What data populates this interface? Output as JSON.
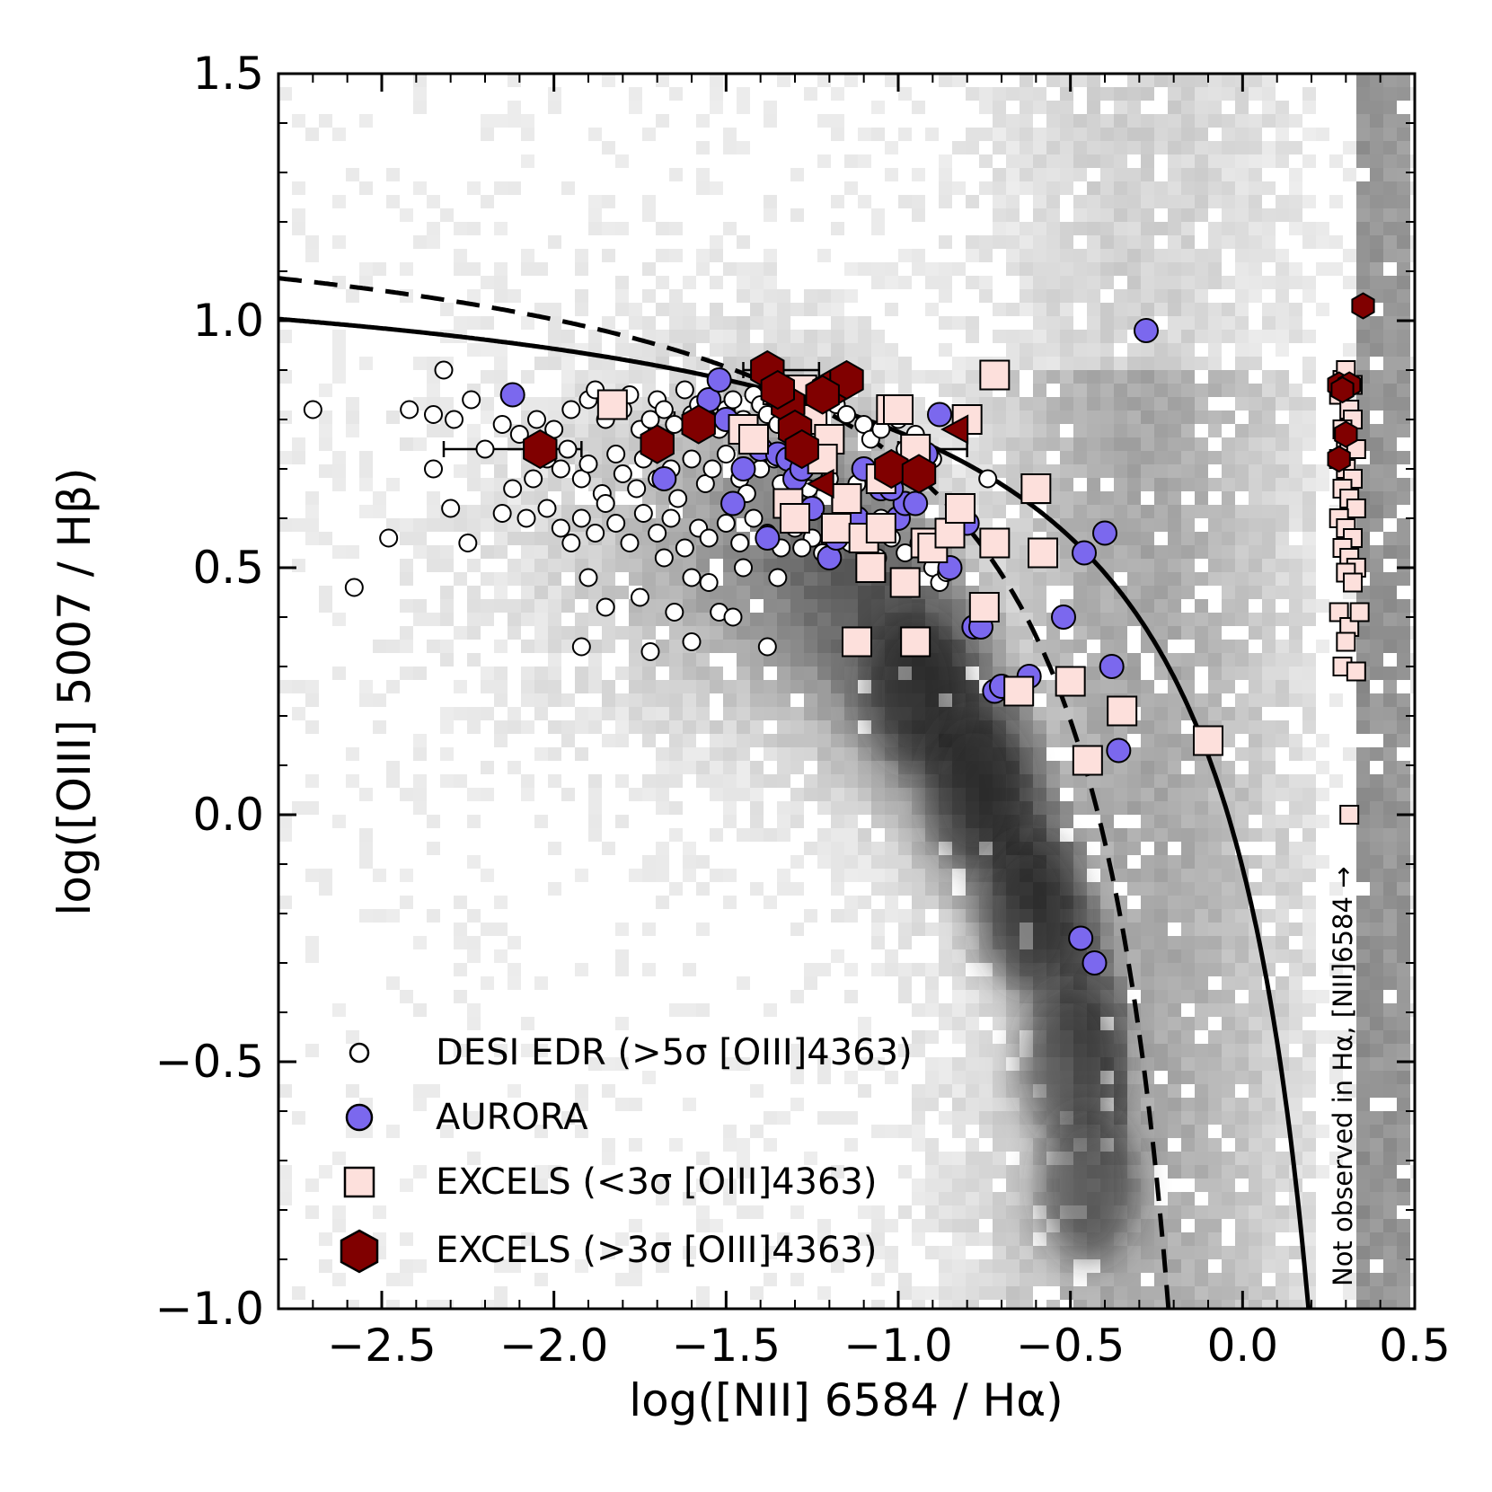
{
  "chart_data": {
    "type": "scatter",
    "xlabel": "log([NII] 6584 / Hα)",
    "ylabel": "log([OIII] 5007 / Hβ)",
    "xlim": [
      -2.8,
      0.5
    ],
    "ylim": [
      -1.0,
      1.5
    ],
    "x_ticks": [
      -2.5,
      -2.0,
      -1.5,
      -1.0,
      -0.5,
      0.0,
      0.5
    ],
    "x_tick_labels": [
      "−2.5",
      "−2.0",
      "−1.5",
      "−1.0",
      "−0.5",
      "0.0",
      "0.5"
    ],
    "y_ticks": [
      -1.0,
      -0.5,
      0.0,
      0.5,
      1.0,
      1.5
    ],
    "y_tick_labels": [
      "−1.0",
      "−0.5",
      "0.0",
      "0.5",
      "1.0",
      "1.5"
    ],
    "annotation": "Not observed in Hα, [NII]6584 →",
    "background": "2D histogram of a large galaxy sample in grayscale (density), main locus curving from (−1.6, 0.5) down to (−0.4, −0.9)",
    "lines": [
      {
        "name": "Kewley et al. (solid)",
        "style": "solid",
        "formula": "0.61/(x-0.47)+1.19"
      },
      {
        "name": "Kauffmann et al. (dashed)",
        "style": "dashed",
        "formula": "0.61/(x-0.05)+1.3"
      }
    ],
    "legend": [
      {
        "label": "DESI EDR (>5σ [OIII]4363)",
        "marker": "circle-small",
        "color": "#ffffff"
      },
      {
        "label": "AURORA",
        "marker": "circle",
        "color": "#7b68ee"
      },
      {
        "label": "EXCELS (<3σ [OIII]4363)",
        "marker": "square",
        "color": "#fde0dc"
      },
      {
        "label": "EXCELS (>3σ [OIII]4363)",
        "marker": "hexagon",
        "color": "#800000"
      }
    ],
    "series": [
      {
        "name": "DESI EDR (>5σ [OIII]4363)",
        "x": [
          -2.7,
          -2.42,
          -2.35,
          -2.32,
          -2.29,
          -2.24,
          -2.15,
          -2.1,
          -2.05,
          -2.0,
          -1.95,
          -1.9,
          -1.88,
          -1.85,
          -1.8,
          -1.78,
          -1.75,
          -1.72,
          -1.7,
          -1.68,
          -1.65,
          -1.62,
          -1.6,
          -1.58,
          -1.55,
          -1.52,
          -1.5,
          -1.48,
          -1.45,
          -1.42,
          -1.4,
          -1.38,
          -1.35,
          -1.3,
          -1.28,
          -1.25,
          -1.2,
          -1.18,
          -1.15,
          -1.1,
          -1.08,
          -1.05,
          -1.0,
          -0.98,
          -0.95,
          -0.9,
          -2.35,
          -2.2,
          -2.12,
          -2.06,
          -2.02,
          -1.98,
          -1.96,
          -1.92,
          -1.9,
          -1.86,
          -1.82,
          -1.8,
          -1.76,
          -1.74,
          -1.7,
          -1.66,
          -1.64,
          -1.6,
          -1.56,
          -1.54,
          -1.5,
          -1.46,
          -1.44,
          -1.4,
          -1.36,
          -1.34,
          -1.3,
          -1.26,
          -1.22,
          -1.2,
          -1.16,
          -1.12,
          -2.58,
          -2.48,
          -2.3,
          -2.25,
          -2.15,
          -2.08,
          -2.02,
          -1.98,
          -1.95,
          -1.92,
          -1.88,
          -1.85,
          -1.82,
          -1.78,
          -1.74,
          -1.7,
          -1.66,
          -1.62,
          -1.58,
          -1.55,
          -1.5,
          -1.46,
          -1.42,
          -1.38,
          -1.34,
          -1.3,
          -1.25,
          -1.22,
          -1.18,
          -1.14,
          -1.1,
          -1.06,
          -1.02,
          -0.98,
          -0.94,
          -0.9,
          -0.88,
          -1.92,
          -1.72,
          -1.65,
          -1.6,
          -1.52,
          -1.48,
          -1.38,
          -1.6,
          -1.85,
          -1.9,
          -1.75,
          -1.68,
          -1.55,
          -1.45,
          -1.35,
          -1.28,
          -1.2,
          -0.74,
          -1.05,
          -1.15,
          -0.92,
          -0.86
        ],
        "y": [
          0.82,
          0.82,
          0.81,
          0.9,
          0.8,
          0.84,
          0.79,
          0.77,
          0.8,
          0.78,
          0.82,
          0.84,
          0.86,
          0.8,
          0.82,
          0.85,
          0.78,
          0.8,
          0.84,
          0.82,
          0.79,
          0.86,
          0.81,
          0.83,
          0.8,
          0.78,
          0.82,
          0.84,
          0.8,
          0.85,
          0.83,
          0.81,
          0.79,
          0.84,
          0.82,
          0.8,
          0.77,
          0.83,
          0.81,
          0.79,
          0.76,
          0.78,
          0.8,
          0.74,
          0.77,
          0.72,
          0.7,
          0.74,
          0.66,
          0.68,
          0.72,
          0.7,
          0.74,
          0.68,
          0.71,
          0.65,
          0.73,
          0.69,
          0.66,
          0.72,
          0.68,
          0.7,
          0.64,
          0.72,
          0.67,
          0.7,
          0.73,
          0.68,
          0.65,
          0.7,
          0.72,
          0.67,
          0.69,
          0.66,
          0.71,
          0.68,
          0.64,
          0.67,
          0.46,
          0.56,
          0.62,
          0.55,
          0.61,
          0.6,
          0.62,
          0.58,
          0.55,
          0.6,
          0.57,
          0.63,
          0.59,
          0.55,
          0.61,
          0.57,
          0.6,
          0.54,
          0.58,
          0.56,
          0.59,
          0.55,
          0.6,
          0.57,
          0.54,
          0.58,
          0.56,
          0.53,
          0.57,
          0.55,
          0.59,
          0.52,
          0.56,
          0.53,
          0.55,
          0.5,
          0.47,
          0.34,
          0.33,
          0.41,
          0.35,
          0.41,
          0.4,
          0.34,
          0.48,
          0.42,
          0.48,
          0.44,
          0.52,
          0.47,
          0.5,
          0.48,
          0.54,
          0.52,
          0.68,
          0.6,
          0.63,
          0.55,
          0.49
        ]
      },
      {
        "name": "AURORA",
        "x": [
          -2.12,
          -1.55,
          -1.52,
          -1.5,
          -1.48,
          -1.45,
          -1.4,
          -1.38,
          -1.35,
          -1.32,
          -1.3,
          -1.28,
          -1.25,
          -1.2,
          -1.18,
          -1.15,
          -1.12,
          -1.1,
          -1.05,
          -1.0,
          -0.98,
          -0.95,
          -0.92,
          -0.88,
          -0.85,
          -0.8,
          -0.78,
          -0.76,
          -0.72,
          -0.7,
          -0.62,
          -0.52,
          -0.46,
          -0.4,
          -0.38,
          -0.36,
          -0.47,
          -0.43,
          -0.28,
          -1.68,
          -1.25,
          -1.02,
          -0.95
        ],
        "y": [
          0.85,
          0.84,
          0.88,
          0.8,
          0.63,
          0.7,
          0.74,
          0.56,
          0.73,
          0.72,
          0.68,
          0.7,
          0.62,
          0.52,
          0.56,
          0.64,
          0.6,
          0.7,
          0.66,
          0.6,
          0.63,
          0.63,
          0.73,
          0.81,
          0.5,
          0.59,
          0.38,
          0.38,
          0.25,
          0.26,
          0.28,
          0.4,
          0.53,
          0.57,
          0.3,
          0.13,
          -0.25,
          -0.3,
          0.98,
          0.68,
          0.62,
          0.66,
          0.74
        ]
      },
      {
        "name": "EXCELS (<3σ [OIII]4363)",
        "x": [
          -1.83,
          -1.45,
          -1.42,
          -1.32,
          -1.3,
          -1.25,
          -1.2,
          -1.18,
          -1.15,
          -1.1,
          -1.05,
          -1.02,
          -0.98,
          -0.95,
          -0.92,
          -0.9,
          -0.85,
          -0.8,
          -0.75,
          -0.72,
          -0.65,
          -0.6,
          -0.58,
          -0.5,
          -0.45,
          -0.35,
          -0.1,
          -0.72,
          -1.08,
          -0.95,
          -1.12,
          -0.82,
          -1.22,
          -1.35,
          -1.28,
          -1.05,
          -1.0
        ],
        "y": [
          0.83,
          0.78,
          0.76,
          0.63,
          0.6,
          0.8,
          0.76,
          0.58,
          0.64,
          0.56,
          0.58,
          0.82,
          0.47,
          0.35,
          0.55,
          0.54,
          0.57,
          0.8,
          0.42,
          0.55,
          0.25,
          0.66,
          0.53,
          0.27,
          0.11,
          0.21,
          0.15,
          0.89,
          0.5,
          0.74,
          0.35,
          0.62,
          0.72,
          0.86,
          0.86,
          0.68,
          0.82
        ]
      },
      {
        "name": "EXCELS (>3σ [OIII]4363)",
        "x": [
          -2.04,
          -1.7,
          -1.58,
          -1.38,
          -1.32,
          -1.3,
          -1.28,
          -1.2,
          -1.15,
          -1.02,
          -0.94,
          -1.35,
          -1.22
        ],
        "y": [
          0.74,
          0.75,
          0.79,
          0.9,
          0.83,
          0.78,
          0.74,
          0.86,
          0.88,
          0.7,
          0.69,
          0.86,
          0.85
        ]
      },
      {
        "name": "EXCELS (>3σ) upper limits (triangles)",
        "x": [
          -0.83,
          -1.22
        ],
        "y": [
          0.78,
          0.67
        ]
      },
      {
        "name": "Not observed in Hα, [NII]6584 (squares)",
        "x": [
          0.29,
          0.3,
          0.28,
          0.31,
          0.32,
          0.29,
          0.3,
          0.31,
          0.28,
          0.33,
          0.3,
          0.32,
          0.29,
          0.31,
          0.33,
          0.28,
          0.3,
          0.32,
          0.29,
          0.31,
          0.33,
          0.3,
          0.28,
          0.32,
          0.31,
          0.34,
          0.3,
          0.29,
          0.33,
          0.31,
          0.32
        ],
        "y": [
          0.88,
          0.9,
          0.85,
          0.82,
          0.8,
          0.78,
          0.76,
          0.74,
          0.72,
          0.74,
          0.7,
          0.68,
          0.66,
          0.64,
          0.62,
          0.6,
          0.58,
          0.56,
          0.54,
          0.52,
          0.5,
          0.49,
          0.41,
          0.47,
          0.38,
          0.41,
          0.35,
          0.3,
          0.29,
          0.0,
          0.87
        ]
      },
      {
        "name": "Not observed in Hα, [NII]6584 (hexagons)",
        "x": [
          0.35,
          0.28,
          0.31,
          0.29,
          0.3,
          0.28
        ],
        "y": [
          1.03,
          0.87,
          0.87,
          0.86,
          0.77,
          0.72
        ]
      }
    ],
    "error_bars": [
      {
        "x": -2.04,
        "y": 0.74,
        "xerr": [
          0.28,
          0.12
        ]
      },
      {
        "x": -1.35,
        "y": 0.9,
        "xerr": [
          0.1,
          0.12
        ]
      },
      {
        "x": -0.94,
        "y": 0.74,
        "xerr": [
          0.06,
          0.14
        ]
      },
      {
        "x": -1.55,
        "y": 0.8,
        "xerr": [
          0.1,
          0.1
        ]
      }
    ]
  },
  "colors": {
    "aurora": "#7b68ee",
    "excels_low": "#fde0dc",
    "excels_high": "#800000",
    "desi": "#ffffff"
  }
}
